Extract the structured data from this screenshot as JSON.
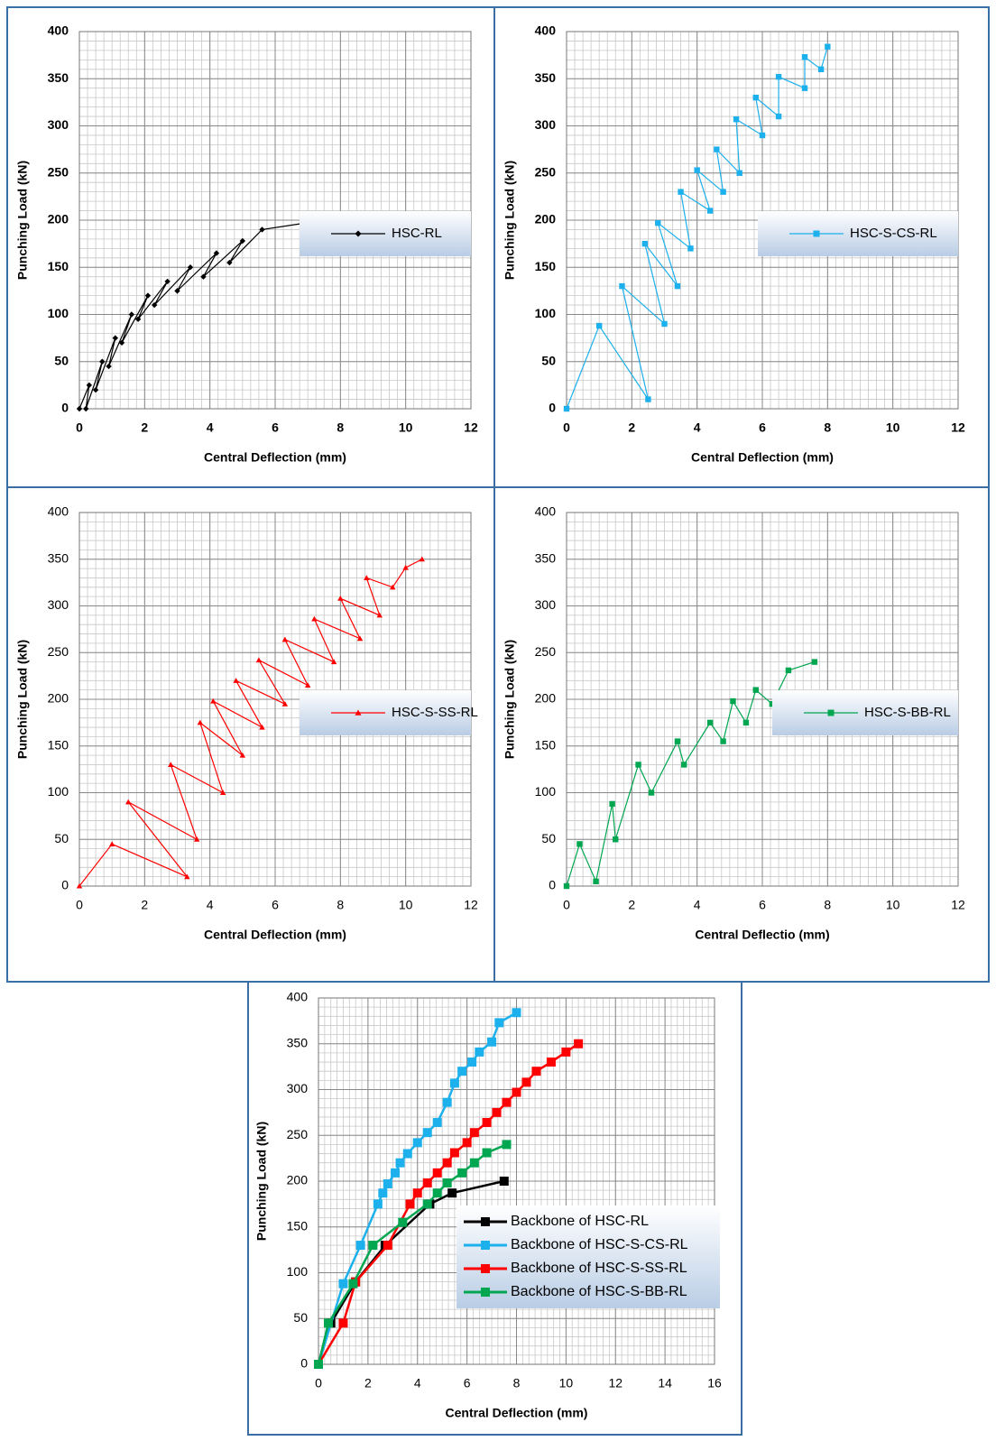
{
  "chart_data": [
    {
      "type": "line",
      "x_label": "Central Deflection (mm)",
      "y_label": "Punching Load (kN)",
      "xlim": [
        0,
        12
      ],
      "ylim": [
        0,
        400
      ],
      "xticks": [
        0,
        2,
        4,
        6,
        8,
        10,
        12
      ],
      "yticks": [
        0,
        50,
        100,
        150,
        200,
        250,
        300,
        350,
        400
      ],
      "grid": true,
      "minor_grid": {
        "x": 0.25,
        "y": 10
      },
      "bold_ticks": true,
      "legend": "center-right",
      "series": [
        {
          "name": "HSC-RL",
          "color": "#000000",
          "marker": "diamond",
          "x": [
            0,
            0.3,
            0.2,
            0.7,
            0.5,
            1.1,
            0.9,
            1.6,
            1.3,
            2.1,
            1.8,
            2.7,
            2.3,
            3.4,
            3.0,
            4.2,
            3.8,
            5.0,
            4.6,
            5.6,
            7.5
          ],
          "values": [
            0,
            25,
            0,
            50,
            20,
            75,
            45,
            100,
            70,
            120,
            95,
            135,
            110,
            150,
            125,
            165,
            140,
            178,
            155,
            190,
            200
          ]
        }
      ]
    },
    {
      "type": "line",
      "x_label": "Central Deflection (mm)",
      "y_label": "Punching Load (kN)",
      "xlim": [
        0,
        12
      ],
      "ylim": [
        0,
        400
      ],
      "xticks": [
        0,
        2,
        4,
        6,
        8,
        10,
        12
      ],
      "yticks": [
        0,
        50,
        100,
        150,
        200,
        250,
        300,
        350,
        400
      ],
      "grid": true,
      "minor_grid": {
        "x": 0.25,
        "y": 10
      },
      "bold_ticks": true,
      "legend": "center-right",
      "series": [
        {
          "name": "HSC-S-CS-RL",
          "color": "#1cb0ec",
          "marker": "square",
          "x": [
            0,
            1.0,
            2.5,
            1.7,
            3.0,
            2.4,
            3.4,
            2.8,
            3.8,
            3.5,
            4.4,
            4.0,
            4.8,
            4.6,
            5.3,
            5.2,
            6.0,
            5.8,
            6.5,
            6.5,
            7.3,
            7.3,
            7.8,
            8.0
          ],
          "values": [
            0,
            88,
            10,
            130,
            90,
            175,
            130,
            197,
            170,
            230,
            210,
            253,
            230,
            275,
            250,
            307,
            290,
            330,
            310,
            352,
            340,
            373,
            360,
            384
          ]
        }
      ]
    },
    {
      "type": "line",
      "x_label": "Central Deflection (mm)",
      "y_label": "Punching Load (kN)",
      "xlim": [
        0,
        12
      ],
      "ylim": [
        0,
        400
      ],
      "xticks": [
        0,
        2,
        4,
        6,
        8,
        10,
        12
      ],
      "yticks": [
        0,
        50,
        100,
        150,
        200,
        250,
        300,
        350,
        400
      ],
      "grid": true,
      "minor_grid": {
        "x": 0.25,
        "y": 10
      },
      "bold_ticks": false,
      "legend": "center-right",
      "series": [
        {
          "name": "HSC-S-SS-RL",
          "color": "#ff0000",
          "marker": "triangle",
          "x": [
            0,
            1.0,
            3.3,
            1.5,
            3.6,
            2.8,
            4.4,
            3.7,
            5.0,
            4.1,
            5.6,
            4.8,
            6.3,
            5.5,
            7.0,
            6.3,
            7.8,
            7.2,
            8.6,
            8.0,
            9.2,
            8.8,
            9.6,
            10.0,
            10.5
          ],
          "values": [
            0,
            45,
            10,
            90,
            50,
            130,
            100,
            175,
            140,
            198,
            170,
            220,
            195,
            242,
            215,
            264,
            240,
            286,
            265,
            308,
            290,
            330,
            320,
            341,
            350
          ]
        }
      ]
    },
    {
      "type": "line",
      "x_label": "Central Deflectio (mm)",
      "y_label": "Punching Load (kN)",
      "xlim": [
        0,
        12
      ],
      "ylim": [
        0,
        400
      ],
      "xticks": [
        0,
        2,
        4,
        6,
        8,
        10,
        12
      ],
      "yticks": [
        0,
        50,
        100,
        150,
        200,
        250,
        300,
        350,
        400
      ],
      "grid": true,
      "minor_grid": {
        "x": 0.25,
        "y": 10
      },
      "bold_ticks": false,
      "legend": "center-right",
      "series": [
        {
          "name": "HSC-S-BB-RL",
          "color": "#00a650",
          "marker": "square",
          "x": [
            0,
            0.4,
            0.9,
            1.4,
            1.5,
            2.2,
            2.6,
            3.4,
            3.6,
            4.4,
            4.8,
            5.1,
            5.5,
            5.8,
            6.3,
            6.8,
            7.6
          ],
          "values": [
            0,
            45,
            5,
            88,
            50,
            130,
            100,
            155,
            130,
            175,
            155,
            198,
            175,
            210,
            195,
            231,
            240
          ]
        }
      ]
    },
    {
      "type": "line",
      "x_label": "Central Deflection (mm)",
      "y_label": "Punching Load (kN)",
      "xlim": [
        0,
        16
      ],
      "ylim": [
        0,
        400
      ],
      "xticks": [
        0,
        2,
        4,
        6,
        8,
        10,
        12,
        14,
        16
      ],
      "yticks": [
        0,
        50,
        100,
        150,
        200,
        250,
        300,
        350,
        400
      ],
      "grid": true,
      "minor_grid": {
        "x": 0.25,
        "y": 10
      },
      "bold_ticks": false,
      "legend": "lower-right",
      "series": [
        {
          "name": "Backbone of HSC-RL",
          "color": "#000000",
          "marker": "square",
          "x": [
            0,
            0.5,
            1.5,
            2.7,
            4.5,
            5.4,
            7.5
          ],
          "values": [
            0,
            45,
            90,
            130,
            175,
            187,
            200
          ]
        },
        {
          "name": "Backbone of HSC-S-CS-RL",
          "color": "#1cb0ec",
          "marker": "square",
          "x": [
            0,
            1.0,
            1.7,
            2.4,
            2.6,
            2.8,
            3.1,
            3.3,
            3.6,
            4.0,
            4.4,
            4.8,
            5.2,
            5.5,
            5.8,
            6.2,
            6.5,
            7.0,
            7.3,
            8.0
          ],
          "values": [
            0,
            88,
            130,
            175,
            187,
            197,
            209,
            220,
            230,
            242,
            253,
            264,
            286,
            307,
            320,
            330,
            341,
            352,
            373,
            384
          ]
        },
        {
          "name": "Backbone of HSC-S-SS-RL",
          "color": "#ff0000",
          "marker": "square",
          "x": [
            0,
            1.0,
            1.5,
            2.8,
            3.7,
            4.0,
            4.4,
            4.8,
            5.2,
            5.5,
            6.0,
            6.3,
            6.8,
            7.2,
            7.6,
            8.0,
            8.4,
            8.8,
            9.4,
            10.0,
            10.5
          ],
          "values": [
            0,
            45,
            90,
            130,
            175,
            187,
            198,
            209,
            220,
            231,
            242,
            253,
            264,
            275,
            286,
            297,
            308,
            320,
            330,
            341,
            350
          ]
        },
        {
          "name": "Backbone of HSC-S-BB-RL",
          "color": "#00a650",
          "marker": "square",
          "x": [
            0,
            0.4,
            1.4,
            2.2,
            3.4,
            4.4,
            4.8,
            5.2,
            5.8,
            6.3,
            6.8,
            7.6
          ],
          "values": [
            0,
            45,
            88,
            130,
            155,
            175,
            187,
            198,
            209,
            220,
            231,
            240
          ]
        }
      ]
    }
  ]
}
